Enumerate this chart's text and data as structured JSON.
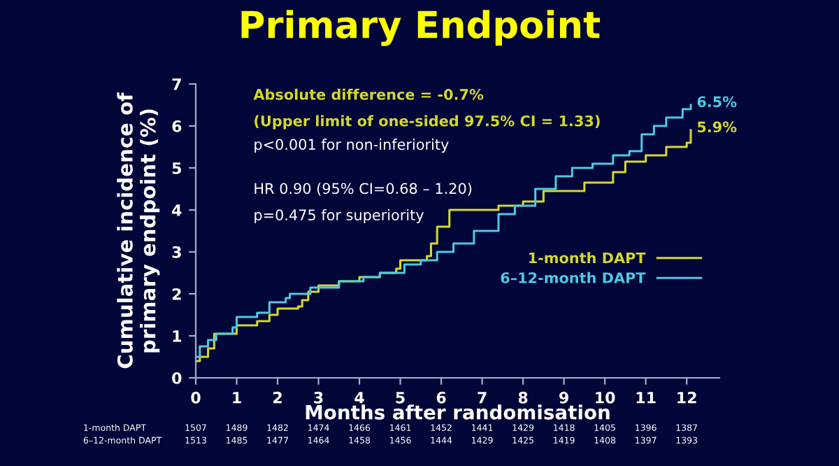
{
  "chart_data": {
    "type": "step",
    "title": "Primary Endpoint",
    "xlabel": "Months after randomisation",
    "ylabel": "Cumulative incidence of\nprimary endpoint (%)",
    "xlim": [
      0,
      12.8
    ],
    "ylim": [
      0,
      7
    ],
    "xticks": [
      0,
      1,
      2,
      3,
      4,
      5,
      6,
      7,
      8,
      9,
      10,
      11,
      12
    ],
    "yticks": [
      0,
      1,
      2,
      3,
      4,
      5,
      6,
      7
    ],
    "grid": false,
    "legend": "right",
    "series": [
      {
        "name": "1-month DAPT",
        "color": "#d4d82a",
        "x": [
          0,
          0.1,
          0.3,
          0.45,
          1.0,
          1.5,
          1.8,
          2.0,
          2.5,
          2.6,
          2.75,
          3.0,
          3.5,
          4.0,
          4.5,
          4.9,
          5.0,
          5.65,
          5.75,
          5.9,
          6.2,
          7.4,
          8.0,
          8.5,
          9.5,
          10.2,
          10.5,
          11.0,
          11.5,
          12.0,
          12.1
        ],
        "values": [
          0.4,
          0.5,
          0.7,
          1.05,
          1.25,
          1.35,
          1.5,
          1.65,
          1.7,
          1.85,
          2.05,
          2.2,
          2.3,
          2.4,
          2.5,
          2.6,
          2.8,
          2.9,
          3.2,
          3.6,
          4.0,
          4.1,
          4.2,
          4.45,
          4.65,
          4.9,
          5.15,
          5.3,
          5.5,
          5.6,
          5.9
        ]
      },
      {
        "name": "6–12-month DAPT",
        "color": "#4fc8e0",
        "x": [
          0,
          0.1,
          0.3,
          0.5,
          0.9,
          1.0,
          1.5,
          1.8,
          2.2,
          2.3,
          2.8,
          3.5,
          4.1,
          4.5,
          5.1,
          5.5,
          5.9,
          6.3,
          6.8,
          7.4,
          7.8,
          8.3,
          8.8,
          9.2,
          9.7,
          10.2,
          10.6,
          10.9,
          11.2,
          11.5,
          11.9,
          12.1
        ],
        "values": [
          0.5,
          0.75,
          0.9,
          1.05,
          1.2,
          1.45,
          1.55,
          1.8,
          1.9,
          2.0,
          2.15,
          2.3,
          2.4,
          2.5,
          2.7,
          2.8,
          3.0,
          3.2,
          3.5,
          3.9,
          4.1,
          4.5,
          4.8,
          5.0,
          5.1,
          5.3,
          5.4,
          5.8,
          6.0,
          6.2,
          6.4,
          6.5
        ]
      }
    ],
    "annotations": [
      "Absolute difference = -0.7%",
      "(Upper limit of one-sided 97.5% CI = 1.33)",
      "p<0.001 for non-inferiority",
      "HR 0.90 (95% CI=0.68 – 1.20)",
      "p=0.475 for superiority",
      {
        "text": "6.5%",
        "x": 12.1,
        "y": 6.5
      },
      {
        "text": "5.9%",
        "x": 12.1,
        "y": 5.9
      },
      "1507",
      "1489",
      "1482",
      "1474",
      "1466",
      "1461",
      "1452",
      "1441",
      "1429",
      "1418",
      "1405",
      "1396",
      "1387",
      "1513",
      "1485",
      "1477",
      "1464",
      "1458",
      "1456",
      "1444",
      "1429",
      "1425",
      "1419",
      "1408",
      "1397",
      "1393"
    ]
  }
}
